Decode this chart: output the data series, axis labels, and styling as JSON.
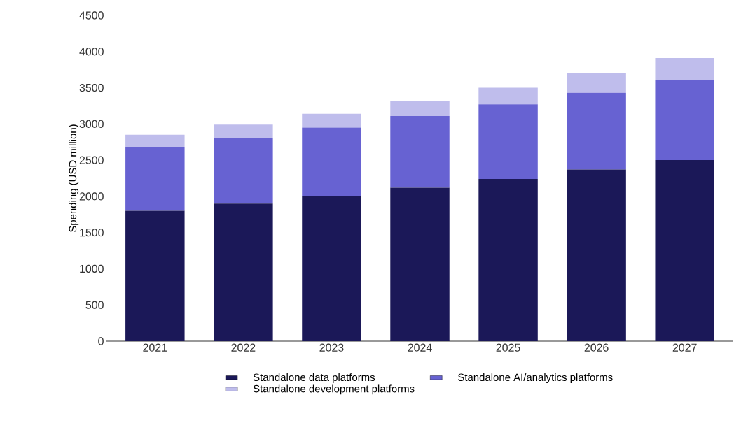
{
  "chart_data": {
    "type": "bar",
    "stacked": true,
    "ylabel": "Spending (USD million)",
    "categories": [
      "2021",
      "2022",
      "2023",
      "2024",
      "2025",
      "2026",
      "2027"
    ],
    "series": [
      {
        "name": "Standalone data platforms",
        "color": "#1b1858",
        "values": [
          1800,
          1900,
          2000,
          2120,
          2240,
          2370,
          2500
        ]
      },
      {
        "name": "Standalone AI/analytics platforms",
        "color": "#6762d2",
        "values": [
          880,
          910,
          950,
          990,
          1030,
          1060,
          1110
        ]
      },
      {
        "name": "Standalone development platforms",
        "color": "#bfbdec",
        "values": [
          170,
          180,
          190,
          210,
          230,
          270,
          300
        ]
      }
    ],
    "ylim": [
      0,
      4500
    ],
    "yticks": [
      0,
      500,
      1000,
      1500,
      2000,
      2500,
      3000,
      3500,
      4000,
      4500
    ],
    "grid": false,
    "legend": "bottom"
  }
}
